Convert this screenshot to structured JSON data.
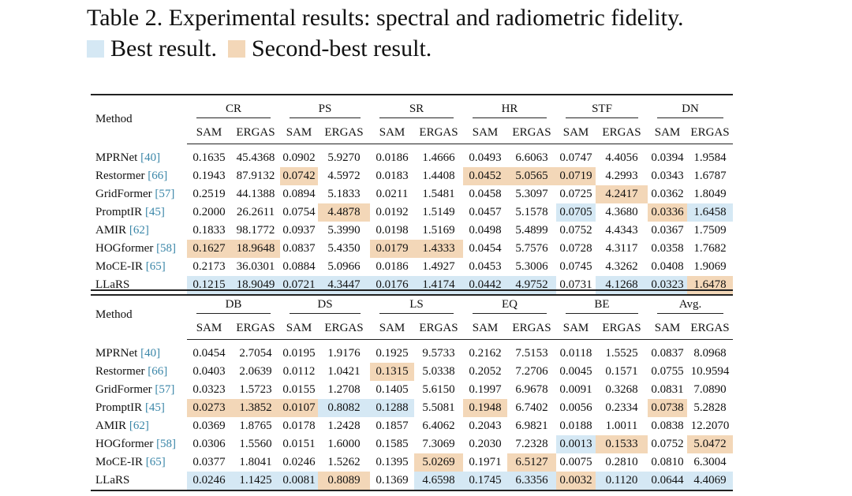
{
  "caption": {
    "title": "Table 2. Experimental results: spectral and radiometric fidelity.",
    "best_label": "Best result.",
    "second_label": "Second-best result.",
    "colors": {
      "best": "#d5e8f4",
      "second": "#f3d7b8"
    }
  },
  "tables": [
    {
      "method_header": "Method",
      "groups": [
        "CR",
        "PS",
        "SR",
        "HR",
        "STF",
        "DN"
      ],
      "subheaders": [
        "SAM",
        "ERGAS"
      ],
      "rows": [
        {
          "method": "MPRNet",
          "ref": "[40]",
          "values": [
            "0.1635",
            "45.4368",
            "0.0902",
            "5.9270",
            "0.0186",
            "1.4666",
            "0.0493",
            "6.6063",
            "0.0747",
            "4.4056",
            "0.0394",
            "1.9584"
          ],
          "marks": [
            "",
            "",
            "",
            "",
            "",
            "",
            "",
            "",
            "",
            "",
            "",
            ""
          ]
        },
        {
          "method": "Restormer",
          "ref": "[66]",
          "values": [
            "0.1943",
            "87.9132",
            "0.0742",
            "4.5972",
            "0.0183",
            "1.4408",
            "0.0452",
            "5.0565",
            "0.0719",
            "4.2993",
            "0.0343",
            "1.6787"
          ],
          "marks": [
            "",
            "",
            "s",
            "",
            "",
            "",
            "s",
            "s",
            "s",
            "",
            "",
            ""
          ]
        },
        {
          "method": "GridFormer",
          "ref": "[57]",
          "values": [
            "0.2519",
            "44.1388",
            "0.0894",
            "5.1833",
            "0.0211",
            "1.5481",
            "0.0458",
            "5.3097",
            "0.0725",
            "4.2417",
            "0.0362",
            "1.8049"
          ],
          "marks": [
            "",
            "",
            "",
            "",
            "",
            "",
            "",
            "",
            "",
            "s",
            "",
            ""
          ]
        },
        {
          "method": "PromptIR",
          "ref": "[45]",
          "values": [
            "0.2000",
            "26.2611",
            "0.0754",
            "4.4878",
            "0.0192",
            "1.5149",
            "0.0457",
            "5.1578",
            "0.0705",
            "4.3680",
            "0.0336",
            "1.6458"
          ],
          "marks": [
            "",
            "",
            "",
            "s",
            "",
            "",
            "",
            "",
            "b",
            "",
            "s",
            "b"
          ]
        },
        {
          "method": "AMIR",
          "ref": "[62]",
          "values": [
            "0.1833",
            "98.1772",
            "0.0937",
            "5.3990",
            "0.0198",
            "1.5169",
            "0.0498",
            "5.4899",
            "0.0752",
            "4.4343",
            "0.0367",
            "1.7509"
          ],
          "marks": [
            "",
            "",
            "",
            "",
            "",
            "",
            "",
            "",
            "",
            "",
            "",
            ""
          ]
        },
        {
          "method": "HOGformer",
          "ref": "[58]",
          "values": [
            "0.1627",
            "18.9648",
            "0.0837",
            "5.4350",
            "0.0179",
            "1.4333",
            "0.0454",
            "5.7576",
            "0.0728",
            "4.3117",
            "0.0358",
            "1.7682"
          ],
          "marks": [
            "s",
            "s",
            "",
            "",
            "s",
            "s",
            "",
            "",
            "",
            "",
            "",
            ""
          ]
        },
        {
          "method": "MoCE-IR",
          "ref": "[65]",
          "values": [
            "0.2173",
            "36.0301",
            "0.0884",
            "5.0966",
            "0.0186",
            "1.4927",
            "0.0453",
            "5.3006",
            "0.0745",
            "4.3262",
            "0.0408",
            "1.9069"
          ],
          "marks": [
            "",
            "",
            "",
            "",
            "",
            "",
            "",
            "",
            "",
            "",
            "",
            ""
          ]
        },
        {
          "method": "LLaRS",
          "ref": "",
          "values": [
            "0.1215",
            "18.9049",
            "0.0721",
            "4.3447",
            "0.0176",
            "1.4174",
            "0.0442",
            "4.9752",
            "0.0731",
            "4.1268",
            "0.0323",
            "1.6478"
          ],
          "marks": [
            "b",
            "b",
            "b",
            "b",
            "b",
            "b",
            "b",
            "b",
            "",
            "b",
            "b",
            "s"
          ]
        }
      ]
    },
    {
      "method_header": "Method",
      "groups": [
        "DB",
        "DS",
        "LS",
        "EQ",
        "BE",
        "Avg."
      ],
      "subheaders": [
        "SAM",
        "ERGAS"
      ],
      "rows": [
        {
          "method": "MPRNet",
          "ref": "[40]",
          "values": [
            "0.0454",
            "2.7054",
            "0.0195",
            "1.9176",
            "0.1925",
            "9.5733",
            "0.2162",
            "7.5153",
            "0.0118",
            "1.5525",
            "0.0837",
            "8.0968"
          ],
          "marks": [
            "",
            "",
            "",
            "",
            "",
            "",
            "",
            "",
            "",
            "",
            "",
            ""
          ]
        },
        {
          "method": "Restormer",
          "ref": "[66]",
          "values": [
            "0.0403",
            "2.0639",
            "0.0112",
            "1.0421",
            "0.1315",
            "5.0338",
            "0.2052",
            "7.2706",
            "0.0045",
            "0.1571",
            "0.0755",
            "10.9594"
          ],
          "marks": [
            "",
            "",
            "",
            "",
            "s",
            "",
            "",
            "",
            "",
            "",
            "",
            ""
          ]
        },
        {
          "method": "GridFormer",
          "ref": "[57]",
          "values": [
            "0.0323",
            "1.5723",
            "0.0155",
            "1.2708",
            "0.1405",
            "5.6150",
            "0.1997",
            "6.9678",
            "0.0091",
            "0.3268",
            "0.0831",
            "7.0890"
          ],
          "marks": [
            "",
            "",
            "",
            "",
            "",
            "",
            "",
            "",
            "",
            "",
            "",
            ""
          ]
        },
        {
          "method": "PromptIR",
          "ref": "[45]",
          "values": [
            "0.0273",
            "1.3852",
            "0.0107",
            "0.8082",
            "0.1288",
            "5.5081",
            "0.1948",
            "6.7402",
            "0.0056",
            "0.2334",
            "0.0738",
            "5.2828"
          ],
          "marks": [
            "s",
            "s",
            "s",
            "b",
            "b",
            "",
            "s",
            "",
            "",
            "",
            "s",
            ""
          ]
        },
        {
          "method": "AMIR",
          "ref": "[62]",
          "values": [
            "0.0369",
            "1.8765",
            "0.0178",
            "1.2428",
            "0.1857",
            "6.4062",
            "0.2043",
            "6.9821",
            "0.0188",
            "1.0011",
            "0.0838",
            "12.2070"
          ],
          "marks": [
            "",
            "",
            "",
            "",
            "",
            "",
            "",
            "",
            "",
            "",
            "",
            ""
          ]
        },
        {
          "method": "HOGformer",
          "ref": "[58]",
          "values": [
            "0.0306",
            "1.5560",
            "0.0151",
            "1.6000",
            "0.1585",
            "7.3069",
            "0.2030",
            "7.2328",
            "0.0013",
            "0.1533",
            "0.0752",
            "5.0472"
          ],
          "marks": [
            "",
            "",
            "",
            "",
            "",
            "",
            "",
            "",
            "b",
            "s",
            "",
            "s"
          ]
        },
        {
          "method": "MoCE-IR",
          "ref": "[65]",
          "values": [
            "0.0377",
            "1.8041",
            "0.0246",
            "1.5262",
            "0.1395",
            "5.0269",
            "0.1971",
            "6.5127",
            "0.0075",
            "0.2810",
            "0.0810",
            "6.3004"
          ],
          "marks": [
            "",
            "",
            "",
            "",
            "",
            "s",
            "",
            "s",
            "",
            "",
            "",
            ""
          ]
        },
        {
          "method": "LLaRS",
          "ref": "",
          "values": [
            "0.0246",
            "1.1425",
            "0.0081",
            "0.8089",
            "0.1369",
            "4.6598",
            "0.1745",
            "6.3356",
            "0.0032",
            "0.1120",
            "0.0644",
            "4.4069"
          ],
          "marks": [
            "b",
            "b",
            "b",
            "s",
            "",
            "b",
            "b",
            "b",
            "s",
            "b",
            "b",
            "b"
          ]
        }
      ]
    }
  ]
}
